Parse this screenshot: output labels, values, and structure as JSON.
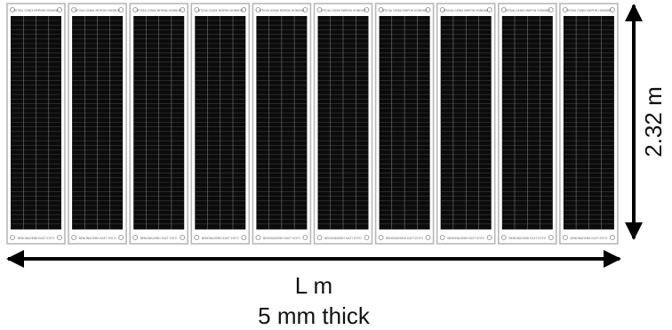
{
  "diagram": {
    "panel_count": 10,
    "panel_top_text": "ΘΤΙΟΙΑ ΟΣΝΙΧ ΜΗΡΟΝ ΗΟΝΗΗΒ",
    "panel_bottom_text": "ΒΕΝΟΝΑΟΕΒΗ ΕΑΣΤ ΕΟΓΟ",
    "height_label": "2.32 m",
    "length_label": "L m",
    "thickness_label": "5 mm thick",
    "colors": {
      "frame": "#b8b8b8",
      "cell": "#0b0b0b",
      "arrow": "#000000"
    }
  }
}
